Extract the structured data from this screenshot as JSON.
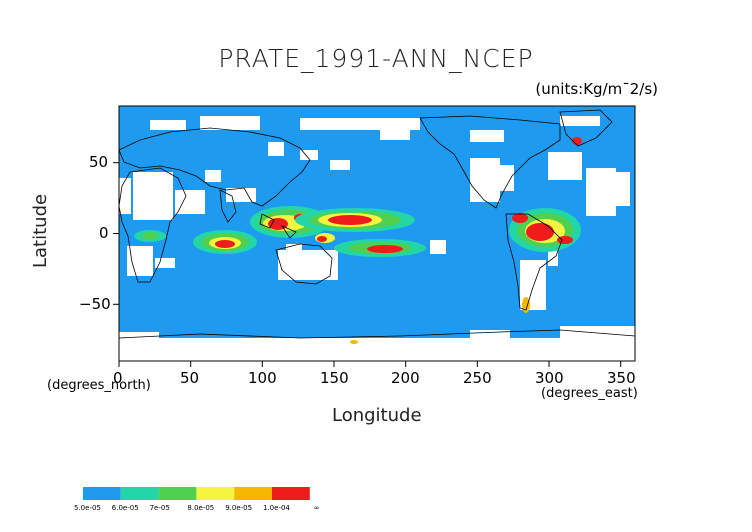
{
  "title": "PRATE_1991-ANN_NCEP",
  "units": "(units:Kg/m¯2/s)",
  "x_axis": {
    "label": "Longitude",
    "note": "(degrees_east)",
    "range": [
      0,
      360
    ],
    "ticks": [
      "0",
      "50",
      "100",
      "150",
      "200",
      "250",
      "300",
      "350"
    ]
  },
  "y_axis": {
    "label": "Latitude",
    "note": "(degrees_north)",
    "range": [
      -90,
      90
    ],
    "ticks": [
      "50",
      "0",
      "−50"
    ]
  },
  "colors": {
    "background_field": "#1e9bf0",
    "land_outline": "#000000",
    "missing": "#ffffff"
  },
  "colorbar": {
    "labels": [
      "5.0e-05",
      "6.0e-05",
      "7e-05",
      "8.0e-05",
      "9.0e-05",
      "1.0e-04",
      "∞"
    ],
    "colors": [
      "#1e9bf0",
      "#22d6a8",
      "#50d050",
      "#f5f540",
      "#f5b800",
      "#ee1c1c"
    ]
  }
}
